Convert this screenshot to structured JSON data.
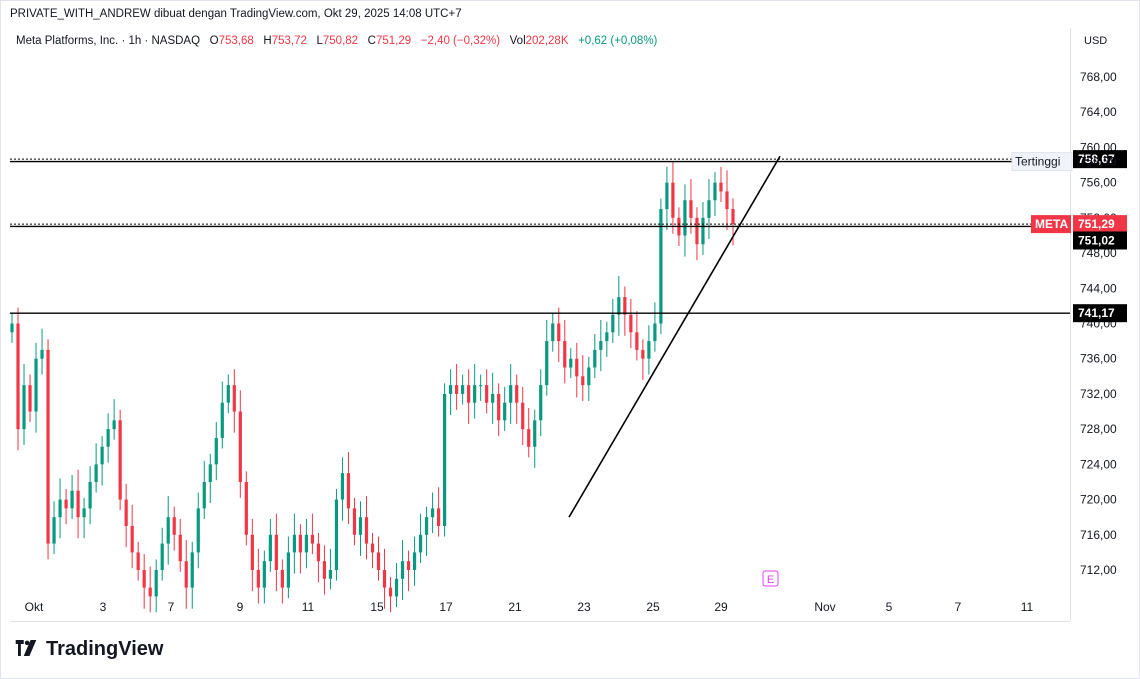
{
  "header": {
    "text": "PRIVATE_WITH_ANDREW dibuat dengan TradingView.com, Okt 29, 2025 14:08 UTC+7"
  },
  "legend": {
    "symbol": "Meta Platforms, Inc. · 1h · NASDAQ",
    "o_label": "O",
    "o_value": "753,68",
    "h_label": "H",
    "h_value": "753,72",
    "l_label": "L",
    "l_value": "750,82",
    "c_label": "C",
    "c_value": "751,29",
    "change": "−2,40 (−0,32%)",
    "vol_label": "Vol",
    "vol_value": "202,28K",
    "vol_change": "+0,62 (+0,08%)"
  },
  "currency": "USD",
  "brand": "TradingView",
  "colors": {
    "up": "#089981",
    "down": "#f23645",
    "line": "#000000",
    "event": "#e040fb"
  },
  "chart_data": {
    "type": "candlestick",
    "title": "Meta Platforms, Inc. · 1h · NASDAQ",
    "ylim": [
      708,
      772
    ],
    "y_ticks": [
      "768,00",
      "764,00",
      "760,00",
      "756,00",
      "752,00",
      "748,00",
      "744,00",
      "740,00",
      "736,00",
      "732,00",
      "728,00",
      "724,00",
      "720,00",
      "716,00",
      "712,00"
    ],
    "x_ticks": [
      "Okt",
      "3",
      "7",
      "9",
      "11",
      "15",
      "17",
      "21",
      "23",
      "25",
      "29",
      "Nov",
      "5",
      "7",
      "11"
    ],
    "grid": false,
    "horizontal_levels": [
      {
        "label": "758,67",
        "value": 758.67,
        "style": "dotted"
      },
      {
        "label": "758,39",
        "value": 758.39,
        "style": "solid",
        "note": "Tertinggi"
      },
      {
        "label": "751,29",
        "value": 751.29,
        "style": "dotted",
        "tag": "META"
      },
      {
        "label": "751,02",
        "value": 751.02,
        "style": "solid"
      },
      {
        "label": "741,17",
        "value": 741.17,
        "style": "solid"
      }
    ],
    "trendline": {
      "from_date": "Okt 22",
      "from_price": 718.0,
      "to_date": "Okt 29",
      "to_price": 759.0
    },
    "event_marker": "E",
    "series": [
      {
        "date": "Okt 1",
        "closes": [
          740.0,
          728.0,
          733.0,
          730.0,
          736.0,
          737.0
        ]
      },
      {
        "date": "Okt 2",
        "closes": [
          715.0,
          718.0,
          720.0,
          719.0,
          721.0,
          718.0
        ]
      },
      {
        "date": "Okt 3",
        "closes": [
          719.0,
          722.0,
          724.0,
          726.0,
          728.0,
          729.0
        ]
      },
      {
        "date": "Okt 6",
        "closes": [
          720.0,
          717.0,
          714.0,
          712.0,
          710.0,
          709.0
        ]
      },
      {
        "date": "Okt 7",
        "closes": [
          712.0,
          715.0,
          718.0,
          716.0,
          713.0,
          710.0
        ]
      },
      {
        "date": "Okt 8",
        "closes": [
          714.0,
          719.0,
          722.0,
          724.0,
          727.0,
          731.0
        ]
      },
      {
        "date": "Okt 9",
        "closes": [
          733.0,
          730.0,
          722.0,
          716.0,
          712.0,
          710.0
        ]
      },
      {
        "date": "Okt 10",
        "closes": [
          713.0,
          716.0,
          712.0,
          710.0,
          714.0,
          716.0
        ]
      },
      {
        "date": "Okt 13",
        "closes": [
          714.0,
          716.0,
          715.0,
          713.0,
          711.0,
          712.0
        ]
      },
      {
        "date": "Okt 14",
        "closes": [
          720.0,
          723.0,
          719.0,
          716.0,
          718.0,
          715.0
        ]
      },
      {
        "date": "Okt 15",
        "closes": [
          714.0,
          712.0,
          710.0,
          709.0,
          711.0,
          713.0
        ]
      },
      {
        "date": "Okt 16",
        "closes": [
          712.0,
          714.0,
          716.0,
          718.0,
          719.0,
          717.0
        ]
      },
      {
        "date": "Okt 17",
        "closes": [
          732.0,
          733.0,
          732.0,
          733.0,
          731.0,
          733.0
        ]
      },
      {
        "date": "Okt 20",
        "closes": [
          733.0,
          731.0,
          732.0,
          729.0,
          731.0,
          733.0
        ]
      },
      {
        "date": "Okt 21",
        "closes": [
          731.0,
          728.0,
          726.0,
          729.0,
          733.0,
          738.0
        ]
      },
      {
        "date": "Okt 22",
        "closes": [
          740.0,
          738.0,
          735.0,
          736.0,
          734.0,
          733.0
        ]
      },
      {
        "date": "Okt 23",
        "closes": [
          735.0,
          737.0,
          738.0,
          739.0,
          741.0,
          743.0
        ]
      },
      {
        "date": "Okt 24",
        "closes": [
          741.0,
          739.0,
          737.0,
          736.0,
          738.0,
          740.0
        ]
      },
      {
        "date": "Okt 27",
        "closes": [
          753.0,
          756.0,
          752.0,
          750.0,
          754.0,
          752.0
        ]
      },
      {
        "date": "Okt 28",
        "closes": [
          749.0,
          752.0,
          754.0,
          756.0,
          755.0,
          753.0
        ]
      },
      {
        "date": "Okt 29",
        "closes": [
          751.29
        ]
      }
    ]
  }
}
